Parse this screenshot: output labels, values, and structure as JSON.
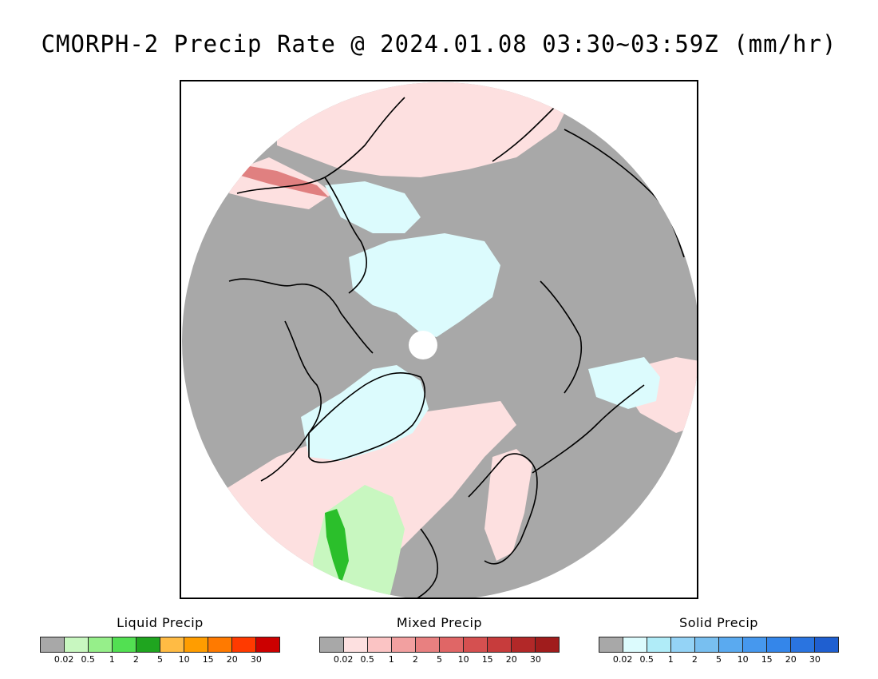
{
  "title": "CMORPH-2 Precip Rate @ 2024.01.08 03:30~03:59Z (mm/hr)",
  "map": {
    "colors": {
      "no_precip": "#a8a8a8",
      "liquid_light": "#c8f7c0",
      "liquid_heavy": "#2bbf2b",
      "mixed_light": "#fde0e0",
      "mixed_medium": "#e08080",
      "solid_light": "#dcfbfd",
      "pole_hole": "#ffffff",
      "coastline": "#000000"
    }
  },
  "legends": [
    {
      "title": "Liquid Precip",
      "colors": [
        "#a8a8a8",
        "#c8f7c0",
        "#96ef8a",
        "#52e052",
        "#1fa51f",
        "#ffbb44",
        "#ff9d00",
        "#ff7a00",
        "#ff3a00",
        "#cc0000"
      ],
      "labels": [
        "0.02",
        "0.5",
        "1",
        "2",
        "5",
        "10",
        "15",
        "20",
        "30"
      ]
    },
    {
      "title": "Mixed Precip",
      "colors": [
        "#a8a8a8",
        "#fde0e0",
        "#fbc4c4",
        "#f2a0a0",
        "#e88080",
        "#e06666",
        "#d55050",
        "#c73c3c",
        "#b22828",
        "#a01c1c"
      ],
      "labels": [
        "0.02",
        "0.5",
        "1",
        "2",
        "5",
        "10",
        "15",
        "20",
        "30"
      ]
    },
    {
      "title": "Solid Precip",
      "colors": [
        "#a8a8a8",
        "#dcfbfd",
        "#b0ecf8",
        "#94d3f6",
        "#78bff0",
        "#5aaaf0",
        "#4698ee",
        "#3486ea",
        "#2a74e0",
        "#1f5fd0"
      ],
      "labels": [
        "0.02",
        "0.5",
        "1",
        "2",
        "5",
        "10",
        "15",
        "20",
        "30"
      ]
    }
  ]
}
